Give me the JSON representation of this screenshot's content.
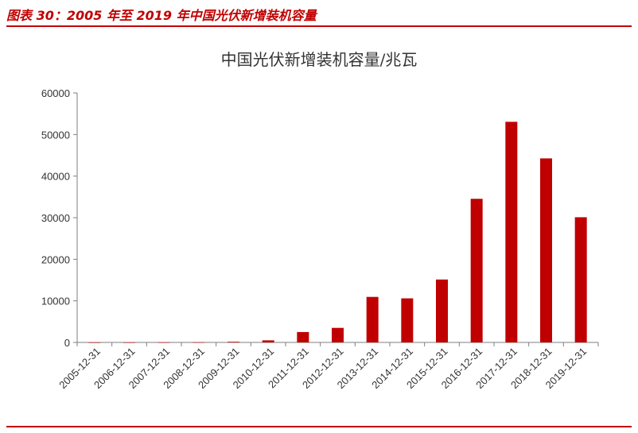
{
  "figure": {
    "caption": "图表 30：2005 年至 2019 年中国光伏新增装机容量"
  },
  "colors": {
    "accent": "#c00000",
    "bar": "#c00000"
  },
  "chart_data": {
    "type": "bar",
    "title": "中国光伏新增装机容量/兆瓦",
    "xlabel": "",
    "ylabel": "",
    "categories": [
      "2005-12-31",
      "2006-12-31",
      "2007-12-31",
      "2008-12-31",
      "2009-12-31",
      "2010-12-31",
      "2011-12-31",
      "2012-12-31",
      "2013-12-31",
      "2014-12-31",
      "2015-12-31",
      "2016-12-31",
      "2017-12-31",
      "2018-12-31",
      "2019-12-31"
    ],
    "values": [
      5,
      10,
      20,
      40,
      160,
      500,
      2500,
      3500,
      10950,
      10600,
      15130,
      34540,
      53060,
      44260,
      30110
    ],
    "ylim": [
      0,
      60000
    ],
    "yticks": [
      0,
      10000,
      20000,
      30000,
      40000,
      50000,
      60000
    ],
    "grid": false,
    "legend": "none"
  }
}
